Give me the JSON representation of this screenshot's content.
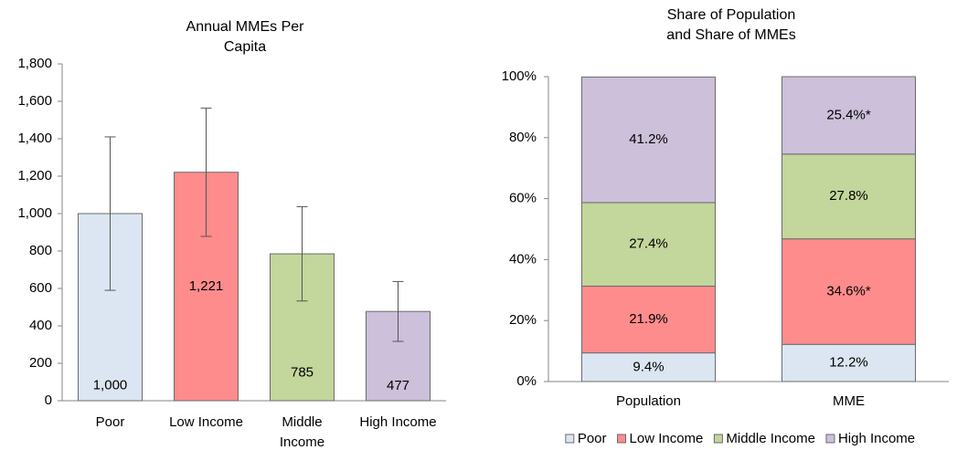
{
  "chart_data": [
    {
      "type": "bar",
      "title": "Annual MMEs Per Capita",
      "categories": [
        "Poor",
        "Low Income",
        "Middle Income",
        "High Income"
      ],
      "values": [
        1000,
        1221,
        785,
        477
      ],
      "value_labels": [
        "1,000",
        "1,221",
        "785",
        "477"
      ],
      "errors": [
        410,
        343,
        252,
        160
      ],
      "colors": [
        "#dce6f2",
        "#ff8c8c",
        "#c3d69b",
        "#ccc0da"
      ],
      "ylim": [
        0,
        1800
      ],
      "yticks": [
        0,
        200,
        400,
        600,
        800,
        {
          "value": 1000,
          "label": "1,000"
        },
        {
          "value": 1200,
          "label": "1,200"
        },
        {
          "value": 1400,
          "label": "1,400"
        },
        {
          "value": 1600,
          "label": "1,600"
        },
        {
          "value": 1800,
          "label": "1,800"
        }
      ]
    },
    {
      "type": "stacked_bar",
      "title": "Share of Population and Share of MMEs",
      "categories": [
        "Population",
        "MME"
      ],
      "series": [
        {
          "name": "Poor",
          "color": "#dce6f2",
          "values": [
            9.4,
            12.2
          ],
          "value_labels": [
            "9.4%",
            "12.2%"
          ]
        },
        {
          "name": "Low Income",
          "color": "#ff8c8c",
          "values": [
            21.9,
            34.6
          ],
          "value_labels": [
            "21.9%",
            "34.6%*"
          ]
        },
        {
          "name": "Middle Income",
          "color": "#c3d69b",
          "values": [
            27.4,
            27.8
          ],
          "value_labels": [
            "27.4%",
            "27.8%"
          ]
        },
        {
          "name": "High Income",
          "color": "#ccc0da",
          "values": [
            41.2,
            25.4
          ],
          "value_labels": [
            "41.2%",
            "25.4%*"
          ]
        }
      ],
      "ylim": [
        0,
        100
      ],
      "yticks": [
        {
          "value": 0,
          "label": "0%"
        },
        {
          "value": 20,
          "label": "20%"
        },
        {
          "value": 40,
          "label": "40%"
        },
        {
          "value": 60,
          "label": "60%"
        },
        {
          "value": 80,
          "label": "80%"
        },
        {
          "value": 100,
          "label": "100%"
        }
      ],
      "legend": "bottom"
    }
  ]
}
